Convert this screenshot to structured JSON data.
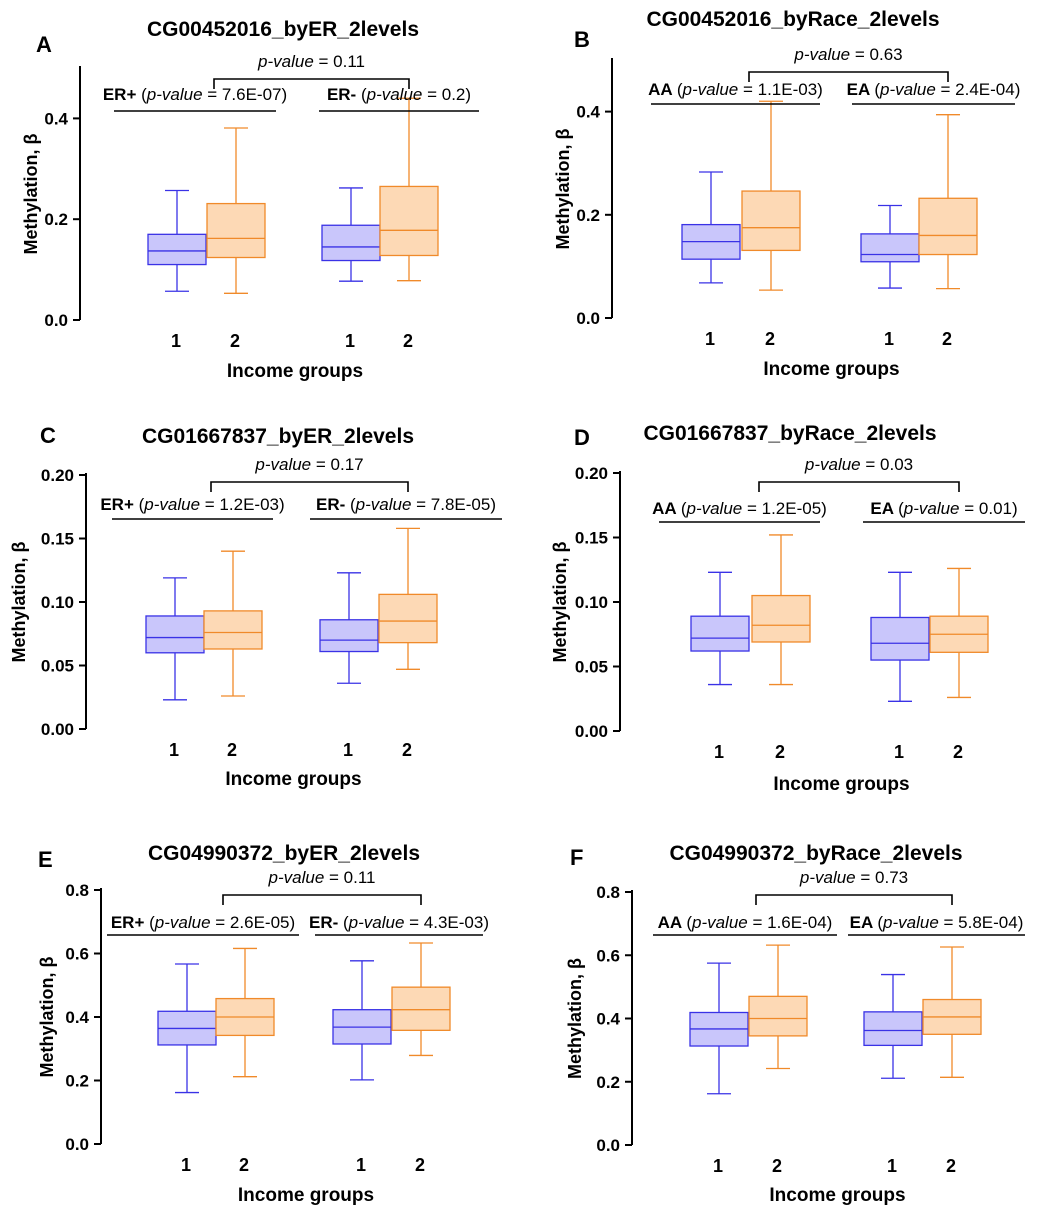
{
  "figure": {
    "colors": {
      "group1_stroke": "#3a32e6",
      "group1_fill": "#c9c6fb",
      "group2_stroke": "#f08a2a",
      "group2_fill": "#fdd9b5",
      "axis": "#000000"
    },
    "pvalue_prefix": "p-value"
  },
  "chart_data": [
    {
      "type": "boxplot",
      "panel_label": "A",
      "title": "CG00452016_byER_2levels",
      "xlabel": "Income groups",
      "ylabel": "Methylation, β",
      "ylim": [
        0,
        0.5
      ],
      "yticks": [
        "0.0",
        "0.2",
        "0.4"
      ],
      "overall_pvalue": "0.11",
      "groups": [
        {
          "name": "ER+",
          "pvalue": "7.6E-07",
          "boxes": [
            {
              "label": "1",
              "min": 0.057,
              "q1": 0.11,
              "median": 0.137,
              "q3": 0.17,
              "max": 0.257
            },
            {
              "label": "2",
              "min": 0.053,
              "q1": 0.124,
              "median": 0.162,
              "q3": 0.231,
              "max": 0.381
            }
          ]
        },
        {
          "name": "ER-",
          "pvalue": "0.2",
          "boxes": [
            {
              "label": "1",
              "min": 0.077,
              "q1": 0.118,
              "median": 0.145,
              "q3": 0.188,
              "max": 0.262
            },
            {
              "label": "2",
              "min": 0.078,
              "q1": 0.128,
              "median": 0.178,
              "q3": 0.265,
              "max": 0.44
            }
          ]
        }
      ]
    },
    {
      "type": "boxplot",
      "panel_label": "B",
      "title": "CG00452016_byRace_2levels",
      "xlabel": "Income groups",
      "ylabel": "Methylation, β",
      "ylim": [
        0,
        0.5
      ],
      "yticks": [
        "0.0",
        "0.2",
        "0.4"
      ],
      "overall_pvalue": "0.63",
      "groups": [
        {
          "name": "AA",
          "pvalue": "1.1E-03",
          "boxes": [
            {
              "label": "1",
              "min": 0.068,
              "q1": 0.114,
              "median": 0.148,
              "q3": 0.181,
              "max": 0.283
            },
            {
              "label": "2",
              "min": 0.054,
              "q1": 0.131,
              "median": 0.175,
              "q3": 0.246,
              "max": 0.42
            }
          ]
        },
        {
          "name": "EA",
          "pvalue": "2.4E-04",
          "boxes": [
            {
              "label": "1",
              "min": 0.058,
              "q1": 0.109,
              "median": 0.123,
              "q3": 0.163,
              "max": 0.218
            },
            {
              "label": "2",
              "min": 0.057,
              "q1": 0.123,
              "median": 0.16,
              "q3": 0.232,
              "max": 0.394
            }
          ]
        }
      ]
    },
    {
      "type": "boxplot",
      "panel_label": "C",
      "title": "CG01667837_byER_2levels",
      "xlabel": "Income groups",
      "ylabel": "Methylation, β",
      "ylim": [
        0,
        0.2
      ],
      "yticks": [
        "0.00",
        "0.05",
        "0.10",
        "0.15",
        "0.20"
      ],
      "overall_pvalue": "0.17",
      "groups": [
        {
          "name": "ER+",
          "pvalue": "1.2E-03",
          "boxes": [
            {
              "label": "1",
              "min": 0.023,
              "q1": 0.06,
              "median": 0.072,
              "q3": 0.089,
              "max": 0.119
            },
            {
              "label": "2",
              "min": 0.026,
              "q1": 0.063,
              "median": 0.076,
              "q3": 0.093,
              "max": 0.14
            }
          ]
        },
        {
          "name": "ER-",
          "pvalue": "7.8E-05",
          "boxes": [
            {
              "label": "1",
              "min": 0.036,
              "q1": 0.061,
              "median": 0.07,
              "q3": 0.086,
              "max": 0.123
            },
            {
              "label": "2",
              "min": 0.047,
              "q1": 0.068,
              "median": 0.085,
              "q3": 0.106,
              "max": 0.158
            }
          ]
        }
      ]
    },
    {
      "type": "boxplot",
      "panel_label": "D",
      "title": "CG01667837_byRace_2levels",
      "xlabel": "Income groups",
      "ylabel": "Methylation, β",
      "ylim": [
        0,
        0.2
      ],
      "yticks": [
        "0.00",
        "0.05",
        "0.10",
        "0.15",
        "0.20"
      ],
      "overall_pvalue": "0.03",
      "groups": [
        {
          "name": "AA",
          "pvalue": "1.2E-05",
          "boxes": [
            {
              "label": "1",
              "min": 0.036,
              "q1": 0.062,
              "median": 0.072,
              "q3": 0.089,
              "max": 0.123
            },
            {
              "label": "2",
              "min": 0.036,
              "q1": 0.069,
              "median": 0.082,
              "q3": 0.105,
              "max": 0.152
            }
          ]
        },
        {
          "name": "EA",
          "pvalue": "0.01",
          "boxes": [
            {
              "label": "1",
              "min": 0.023,
              "q1": 0.055,
              "median": 0.068,
              "q3": 0.088,
              "max": 0.123
            },
            {
              "label": "2",
              "min": 0.026,
              "q1": 0.061,
              "median": 0.075,
              "q3": 0.089,
              "max": 0.126
            }
          ]
        }
      ]
    },
    {
      "type": "boxplot",
      "panel_label": "E",
      "title": "CG04990372_byER_2levels",
      "xlabel": "Income groups",
      "ylabel": "Methylation, β",
      "ylim": [
        0,
        0.8
      ],
      "yticks": [
        "0.0",
        "0.2",
        "0.4",
        "0.6",
        "0.8"
      ],
      "overall_pvalue": "0.11",
      "groups": [
        {
          "name": "ER+",
          "pvalue": "2.6E-05",
          "boxes": [
            {
              "label": "1",
              "min": 0.162,
              "q1": 0.312,
              "median": 0.364,
              "q3": 0.418,
              "max": 0.567
            },
            {
              "label": "2",
              "min": 0.212,
              "q1": 0.342,
              "median": 0.4,
              "q3": 0.458,
              "max": 0.616
            }
          ]
        },
        {
          "name": "ER-",
          "pvalue": "4.3E-03",
          "boxes": [
            {
              "label": "1",
              "min": 0.202,
              "q1": 0.315,
              "median": 0.368,
              "q3": 0.423,
              "max": 0.577
            },
            {
              "label": "2",
              "min": 0.279,
              "q1": 0.358,
              "median": 0.423,
              "q3": 0.494,
              "max": 0.633
            }
          ]
        }
      ]
    },
    {
      "type": "boxplot",
      "panel_label": "F",
      "title": "CG04990372_byRace_2levels",
      "xlabel": "Income groups",
      "ylabel": "Methylation, β",
      "ylim": [
        0,
        0.8
      ],
      "yticks": [
        "0.0",
        "0.2",
        "0.4",
        "0.6",
        "0.8"
      ],
      "overall_pvalue": "0.73",
      "groups": [
        {
          "name": "AA",
          "pvalue": "1.6E-04",
          "boxes": [
            {
              "label": "1",
              "min": 0.162,
              "q1": 0.313,
              "median": 0.367,
              "q3": 0.419,
              "max": 0.575
            },
            {
              "label": "2",
              "min": 0.242,
              "q1": 0.345,
              "median": 0.4,
              "q3": 0.47,
              "max": 0.632
            }
          ]
        },
        {
          "name": "EA",
          "pvalue": "5.8E-04",
          "boxes": [
            {
              "label": "1",
              "min": 0.211,
              "q1": 0.315,
              "median": 0.362,
              "q3": 0.421,
              "max": 0.539
            },
            {
              "label": "2",
              "min": 0.214,
              "q1": 0.35,
              "median": 0.405,
              "q3": 0.46,
              "max": 0.626
            }
          ]
        }
      ]
    }
  ]
}
